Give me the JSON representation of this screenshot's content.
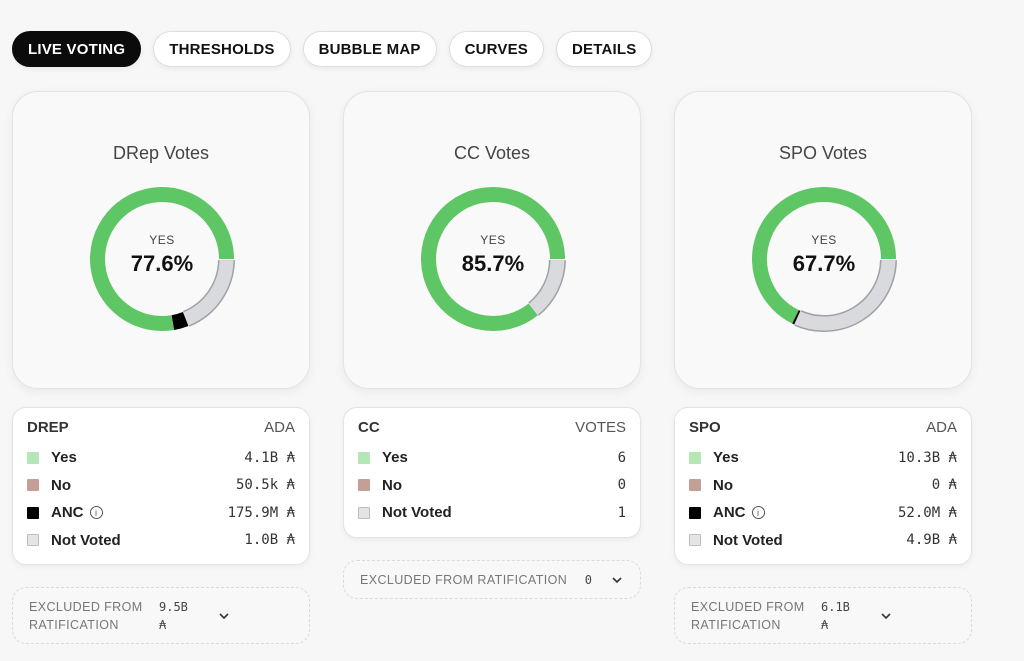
{
  "tabs": [
    {
      "label": "LIVE VOTING",
      "active": true
    },
    {
      "label": "THRESHOLDS",
      "active": false
    },
    {
      "label": "BUBBLE MAP",
      "active": false
    },
    {
      "label": "CURVES",
      "active": false
    },
    {
      "label": "DETAILS",
      "active": false
    }
  ],
  "colors": {
    "yes": "#5fc665",
    "no": "#c09a90",
    "anc": "#000000",
    "not_voted": "#d8dadd",
    "active_tab": "#0b0b0b"
  },
  "drep": {
    "title": "DRep Votes",
    "yes_label": "YES",
    "yes_pct": "77.6%",
    "donut": {
      "yes": 77.6,
      "no": 0.01,
      "anc": 3.3,
      "not_voted": 19.0
    },
    "legend": {
      "head_left": "DREP",
      "head_right": "ADA",
      "rows": [
        {
          "label": "Yes",
          "value": "4.1B ₳",
          "color": "#b5e6b6"
        },
        {
          "label": "No",
          "value": "50.5k ₳",
          "color": "#c49f96"
        },
        {
          "label": "ANC",
          "value": "175.9M ₳",
          "color": "#000000",
          "info": true
        },
        {
          "label": "Not Voted",
          "value": "1.0B ₳",
          "color": "#e2e4e6"
        }
      ]
    },
    "excluded": {
      "label": "EXCLUDED FROM RATIFICATION",
      "value": "9.5B ₳"
    }
  },
  "cc": {
    "title": "CC Votes",
    "yes_label": "YES",
    "yes_pct": "85.7%",
    "donut": {
      "yes": 85.7,
      "no": 0,
      "anc": 0,
      "not_voted": 14.3
    },
    "legend": {
      "head_left": "CC",
      "head_right": "VOTES",
      "rows": [
        {
          "label": "Yes",
          "value": "6",
          "color": "#b5e6b6"
        },
        {
          "label": "No",
          "value": "0",
          "color": "#c49f96"
        },
        {
          "label": "Not Voted",
          "value": "1",
          "color": "#e2e4e6"
        }
      ]
    },
    "excluded": {
      "label": "EXCLUDED FROM RATIFICATION",
      "value": "0"
    }
  },
  "spo": {
    "title": "SPO Votes",
    "yes_label": "YES",
    "yes_pct": "67.7%",
    "donut": {
      "yes": 67.7,
      "no": 0,
      "anc": 0.5,
      "not_voted": 31.8
    },
    "legend": {
      "head_left": "SPO",
      "head_right": "ADA",
      "rows": [
        {
          "label": "Yes",
          "value": "10.3B ₳",
          "color": "#b5e6b6"
        },
        {
          "label": "No",
          "value": "0 ₳",
          "color": "#c49f96"
        },
        {
          "label": "ANC",
          "value": "52.0M ₳",
          "color": "#000000",
          "info": true
        },
        {
          "label": "Not Voted",
          "value": "4.9B ₳",
          "color": "#e2e4e6"
        }
      ]
    },
    "excluded": {
      "label": "EXCLUDED FROM RATIFICATION",
      "value": "6.1B ₳"
    }
  },
  "icons": {
    "info": "info-icon",
    "chevron": "chevron-down-icon"
  }
}
